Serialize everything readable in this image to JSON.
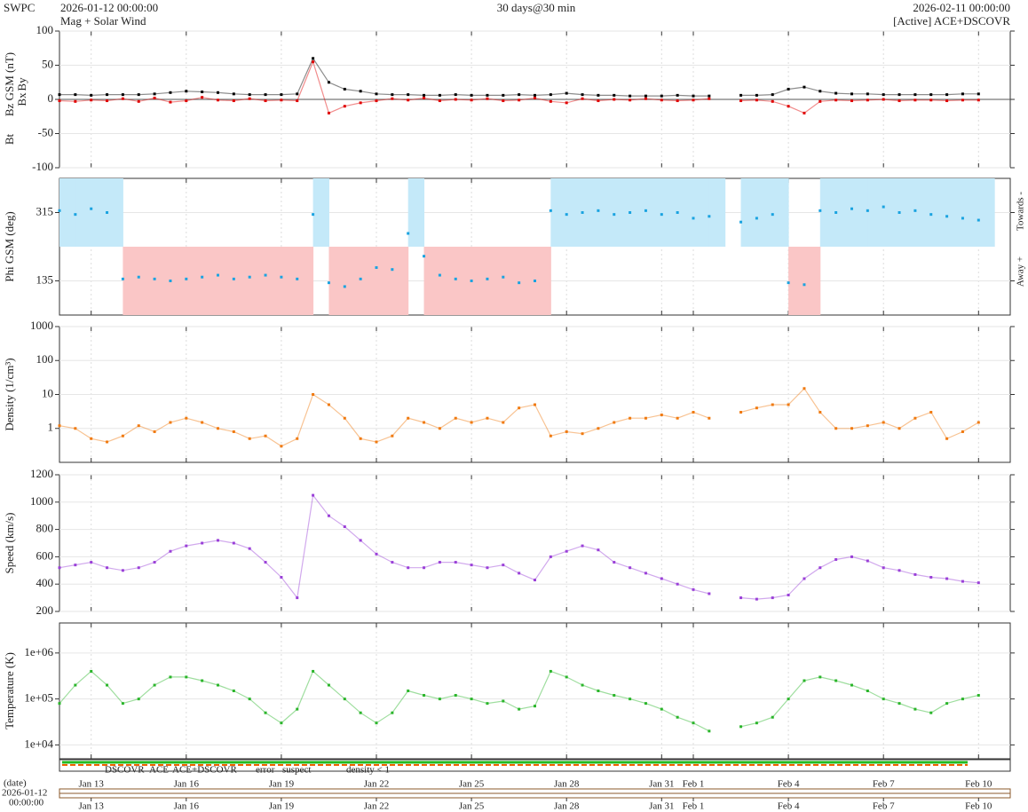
{
  "header": {
    "source": "SWPC",
    "product": "Mag + Solar Wind",
    "span": "30 days@30 min",
    "status": "[Active] ACE+DSCOVR"
  },
  "status_legend": [
    {
      "text": "DSCOVR",
      "color": "#0000dd"
    },
    {
      "text": "ACE",
      "color": "#22aa22"
    },
    {
      "text": "ACE+DSCOVR",
      "color": "#ee00ee"
    },
    {
      "text": "error",
      "color": "#ee0000"
    },
    {
      "text": "suspect",
      "color": "#e8c800"
    },
    {
      "text": "density < 1",
      "color": "#f08010"
    }
  ],
  "date_axis": {
    "label": "(date)",
    "start_date": "2026-01-12",
    "start_time": "00:00:00"
  },
  "chart_data": {
    "type": "scatter",
    "xlim": [
      "2026-01-12 00:00:00",
      "2026-02-11 00:00:00"
    ],
    "xticks": [
      {
        "value": "2026-01-13",
        "label": "Jan 13"
      },
      {
        "value": "2026-01-16",
        "label": "Jan 16"
      },
      {
        "value": "2026-01-19",
        "label": "Jan 19"
      },
      {
        "value": "2026-01-22",
        "label": "Jan 22"
      },
      {
        "value": "2026-01-25",
        "label": "Jan 25"
      },
      {
        "value": "2026-01-28",
        "label": "Jan 28"
      },
      {
        "value": "2026-01-31",
        "label": "Jan 31"
      },
      {
        "value": "2026-02-01",
        "label": "Feb 1"
      },
      {
        "value": "2026-02-04",
        "label": "Feb 4"
      },
      {
        "value": "2026-02-07",
        "label": "Feb 7"
      },
      {
        "value": "2026-02-10",
        "label": "Feb 10"
      }
    ],
    "x": [
      "2026-01-12 00:00",
      "2026-01-12 12:00",
      "2026-01-13 00:00",
      "2026-01-13 12:00",
      "2026-01-14 00:00",
      "2026-01-14 12:00",
      "2026-01-15 00:00",
      "2026-01-15 12:00",
      "2026-01-16 00:00",
      "2026-01-16 12:00",
      "2026-01-17 00:00",
      "2026-01-17 12:00",
      "2026-01-18 00:00",
      "2026-01-18 12:00",
      "2026-01-19 00:00",
      "2026-01-19 12:00",
      "2026-01-20 00:00",
      "2026-01-20 12:00",
      "2026-01-21 00:00",
      "2026-01-21 12:00",
      "2026-01-22 00:00",
      "2026-01-22 12:00",
      "2026-01-23 00:00",
      "2026-01-23 12:00",
      "2026-01-24 00:00",
      "2026-01-24 12:00",
      "2026-01-25 00:00",
      "2026-01-25 12:00",
      "2026-01-26 00:00",
      "2026-01-26 12:00",
      "2026-01-27 00:00",
      "2026-01-27 12:00",
      "2026-01-28 00:00",
      "2026-01-28 12:00",
      "2026-01-29 00:00",
      "2026-01-29 12:00",
      "2026-01-30 00:00",
      "2026-01-30 12:00",
      "2026-01-31 00:00",
      "2026-01-31 12:00",
      "2026-02-01 00:00",
      "2026-02-01 12:00",
      "2026-02-02 00:00",
      "2026-02-02 12:00",
      "2026-02-03 00:00",
      "2026-02-03 12:00",
      "2026-02-04 00:00",
      "2026-02-04 12:00",
      "2026-02-05 00:00",
      "2026-02-05 12:00",
      "2026-02-06 00:00",
      "2026-02-06 12:00",
      "2026-02-07 00:00",
      "2026-02-07 12:00",
      "2026-02-08 00:00",
      "2026-02-08 12:00",
      "2026-02-09 00:00",
      "2026-02-09 12:00",
      "2026-02-10 00:00"
    ],
    "panels": [
      {
        "ylabel_parts": [
          {
            "text": "Bt",
            "color": "#000000"
          },
          {
            "text": "Bz GSM (nT)",
            "color": "#dd0000"
          },
          {
            "text": "Bx",
            "color": "#9040c0"
          },
          {
            "text": "By",
            "color": "#20b0d0"
          }
        ],
        "ylim": [
          -100,
          100
        ],
        "yticks": [
          -100,
          -50,
          0,
          50,
          100
        ],
        "log": false,
        "series": [
          {
            "color": "#000000",
            "values": [
              7,
              7,
              6,
              7,
              7,
              7,
              8,
              10,
              12,
              11,
              10,
              8,
              7,
              7,
              7,
              8,
              60,
              25,
              15,
              12,
              8,
              7,
              7,
              6,
              6,
              7,
              6,
              6,
              6,
              7,
              6,
              7,
              9,
              7,
              6,
              6,
              5,
              5,
              5,
              6,
              5,
              5,
              null,
              6,
              6,
              7,
              15,
              18,
              12,
              9,
              8,
              8,
              7,
              7,
              7,
              7,
              7,
              8,
              8
            ]
          },
          {
            "color": "#e00000",
            "values": [
              -2,
              -3,
              -1,
              -2,
              1,
              -3,
              2,
              -4,
              -2,
              3,
              -1,
              -2,
              1,
              -2,
              -1,
              -2,
              55,
              -20,
              -10,
              -5,
              -2,
              1,
              -1,
              2,
              -2,
              0,
              -1,
              1,
              -2,
              -1,
              2,
              -3,
              -5,
              1,
              -2,
              0,
              -1,
              1,
              -1,
              -2,
              -1,
              1,
              null,
              -2,
              -1,
              -3,
              -10,
              -20,
              -3,
              -1,
              -2,
              -1,
              0,
              -2,
              -1,
              -1,
              -2,
              -1,
              -1
            ]
          }
        ]
      },
      {
        "ylabel": "Phi GSM (deg)",
        "ylabel_color": "#1ba3e0",
        "right_labels": [
          "Towards -",
          "Away +"
        ],
        "ylim": [
          45,
          405
        ],
        "yticks": [
          135,
          315
        ],
        "log": false,
        "sector_colors": [
          "#c4e9f9",
          "#fac6c6"
        ],
        "series": [
          {
            "color": "#1ba3e0",
            "values": [
              320,
              310,
              325,
              315,
              140,
              145,
              140,
              135,
              140,
              145,
              150,
              140,
              145,
              150,
              145,
              140,
              310,
              130,
              120,
              140,
              170,
              165,
              260,
              200,
              150,
              140,
              135,
              140,
              145,
              130,
              135,
              320,
              310,
              315,
              320,
              310,
              315,
              320,
              310,
              315,
              300,
              305,
              null,
              290,
              300,
              310,
              130,
              125,
              320,
              315,
              325,
              320,
              330,
              315,
              320,
              310,
              305,
              300,
              295
            ]
          }
        ]
      },
      {
        "ylabel": "Density (1/cm³)",
        "ylabel_color": "#f07a10",
        "ylim": [
          0.1,
          1000
        ],
        "yticks": [
          1,
          10,
          100,
          1000
        ],
        "log": true,
        "series": [
          {
            "color": "#f07a10",
            "values": [
              1.2,
              1,
              0.5,
              0.4,
              0.6,
              1.2,
              0.8,
              1.5,
              2,
              1.5,
              1,
              0.8,
              0.5,
              0.6,
              0.3,
              0.5,
              10,
              5,
              2,
              0.5,
              0.4,
              0.6,
              2,
              1.5,
              1,
              2,
              1.5,
              2,
              1.5,
              4,
              5,
              0.6,
              0.8,
              0.7,
              1,
              1.5,
              2,
              2,
              2.5,
              2,
              3,
              2,
              null,
              3,
              4,
              5,
              5,
              15,
              3,
              1,
              1,
              1.2,
              1.5,
              1,
              2,
              3,
              0.5,
              0.8,
              1.5
            ]
          }
        ]
      },
      {
        "ylabel": "Speed (km/s)",
        "ylabel_color": "#9a40d8",
        "ylim": [
          200,
          1200
        ],
        "yticks": [
          200,
          400,
          600,
          800,
          1000,
          1200
        ],
        "log": false,
        "series": [
          {
            "color": "#9a40d8",
            "values": [
              520,
              540,
              560,
              520,
              500,
              520,
              560,
              640,
              680,
              700,
              720,
              700,
              660,
              560,
              450,
              300,
              1050,
              900,
              820,
              720,
              620,
              560,
              520,
              520,
              560,
              560,
              540,
              520,
              540,
              480,
              430,
              600,
              640,
              680,
              650,
              560,
              520,
              480,
              440,
              400,
              360,
              330,
              null,
              300,
              290,
              300,
              320,
              440,
              520,
              580,
              600,
              570,
              520,
              500,
              470,
              450,
              440,
              420,
              410
            ]
          }
        ]
      },
      {
        "ylabel": "Temperature (K)",
        "ylabel_color": "#2bb52b",
        "ylim": [
          5000,
          4500000
        ],
        "yticks": [
          {
            "value": 10000,
            "label": "1e+04"
          },
          {
            "value": 100000,
            "label": "1e+05"
          },
          {
            "value": 1000000,
            "label": "1e+06"
          }
        ],
        "log": true,
        "series": [
          {
            "color": "#2bb52b",
            "values": [
              80000,
              200000,
              400000,
              200000,
              80000,
              100000,
              200000,
              300000,
              300000,
              250000,
              200000,
              150000,
              100000,
              50000,
              30000,
              60000,
              400000,
              200000,
              100000,
              50000,
              30000,
              50000,
              150000,
              120000,
              100000,
              120000,
              100000,
              80000,
              90000,
              60000,
              70000,
              400000,
              300000,
              200000,
              150000,
              120000,
              100000,
              80000,
              60000,
              40000,
              30000,
              20000,
              null,
              25000,
              30000,
              40000,
              100000,
              250000,
              300000,
              250000,
              200000,
              150000,
              100000,
              80000,
              60000,
              50000,
              80000,
              100000,
              120000
            ]
          }
        ]
      }
    ]
  }
}
